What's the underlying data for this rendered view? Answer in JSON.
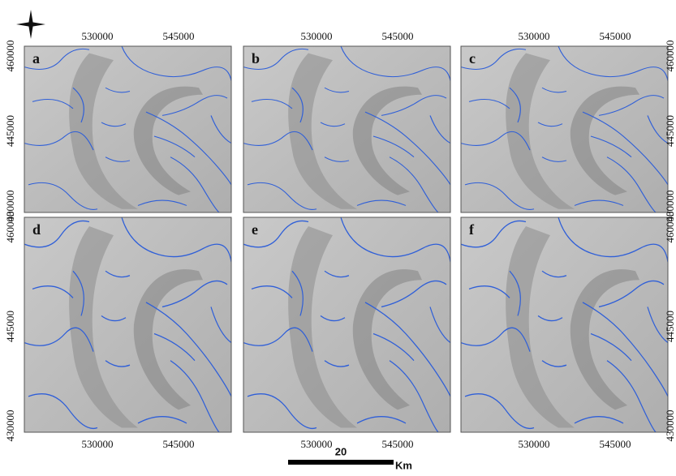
{
  "panels": [
    {
      "label": "a"
    },
    {
      "label": "b"
    },
    {
      "label": "c"
    },
    {
      "label": "d"
    },
    {
      "label": "e"
    },
    {
      "label": "f"
    }
  ],
  "x_ticks": [
    "530000",
    "545000"
  ],
  "y_ticks": [
    "460000",
    "445000",
    "430000"
  ],
  "scale_bar": {
    "distance": "20",
    "unit": "Km"
  }
}
